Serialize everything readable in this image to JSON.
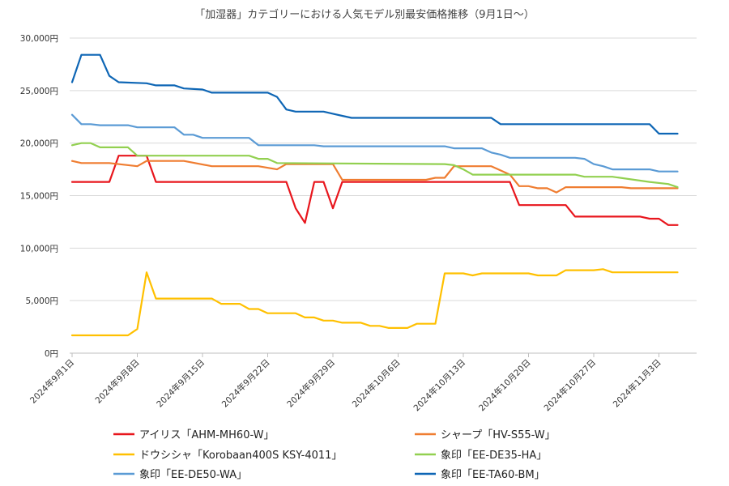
{
  "chart_data": {
    "type": "line",
    "title": "「加湿器」カテゴリーにおける人気モデル別最安価格推移（9月1日〜）",
    "xlabel": "",
    "ylabel": "",
    "ylim": [
      0,
      30000
    ],
    "yticks": [
      0,
      5000,
      10000,
      15000,
      20000,
      25000,
      30000
    ],
    "ytick_labels": [
      "0円",
      "5,000円",
      "10,000円",
      "15,000円",
      "20,000円",
      "25,000円",
      "30,000円"
    ],
    "x_start": "2024-09-01",
    "x_end": "2024-11-05",
    "xticks": [
      "2024-09-01",
      "2024-09-08",
      "2024-09-15",
      "2024-09-22",
      "2024-09-29",
      "2024-10-06",
      "2024-10-13",
      "2024-10-20",
      "2024-10-27",
      "2024-11-03"
    ],
    "xtick_labels": [
      "2024年9月1日",
      "2024年9月8日",
      "2024年9月15日",
      "2024年9月22日",
      "2024年9月29日",
      "2024年10月6日",
      "2024年10月13日",
      "2024年10月20日",
      "2024年10月27日",
      "2024年11月3日"
    ],
    "grid": true,
    "legend_position": "bottom",
    "series": [
      {
        "name": "アイリス「AHM-MH60-W」",
        "color": "#e8161d",
        "points": [
          [
            "2024-09-01",
            16300
          ],
          [
            "2024-09-05",
            16300
          ],
          [
            "2024-09-06",
            18800
          ],
          [
            "2024-09-09",
            18800
          ],
          [
            "2024-09-10",
            16300
          ],
          [
            "2024-09-24",
            16300
          ],
          [
            "2024-09-25",
            13800
          ],
          [
            "2024-09-26",
            12400
          ],
          [
            "2024-09-27",
            16300
          ],
          [
            "2024-09-28",
            16300
          ],
          [
            "2024-09-29",
            13800
          ],
          [
            "2024-09-30",
            16300
          ],
          [
            "2024-10-18",
            16300
          ],
          [
            "2024-10-19",
            14100
          ],
          [
            "2024-10-24",
            14100
          ],
          [
            "2024-10-25",
            13000
          ],
          [
            "2024-11-01",
            13000
          ],
          [
            "2024-11-02",
            12800
          ],
          [
            "2024-11-03",
            12800
          ],
          [
            "2024-11-04",
            12200
          ],
          [
            "2024-11-05",
            12200
          ]
        ]
      },
      {
        "name": "シャープ「HV-S55-W」",
        "color": "#ef7d31",
        "points": [
          [
            "2024-09-01",
            18300
          ],
          [
            "2024-09-02",
            18100
          ],
          [
            "2024-09-05",
            18100
          ],
          [
            "2024-09-08",
            17800
          ],
          [
            "2024-09-09",
            18300
          ],
          [
            "2024-09-13",
            18300
          ],
          [
            "2024-09-16",
            17800
          ],
          [
            "2024-09-21",
            17800
          ],
          [
            "2024-09-23",
            17500
          ],
          [
            "2024-09-24",
            18000
          ],
          [
            "2024-09-29",
            18000
          ],
          [
            "2024-09-30",
            16500
          ],
          [
            "2024-10-09",
            16500
          ],
          [
            "2024-10-10",
            16700
          ],
          [
            "2024-10-11",
            16700
          ],
          [
            "2024-10-12",
            17800
          ],
          [
            "2024-10-16",
            17800
          ],
          [
            "2024-10-17",
            17400
          ],
          [
            "2024-10-18",
            17000
          ],
          [
            "2024-10-19",
            15900
          ],
          [
            "2024-10-20",
            15900
          ],
          [
            "2024-10-21",
            15700
          ],
          [
            "2024-10-22",
            15700
          ],
          [
            "2024-10-23",
            15300
          ],
          [
            "2024-10-24",
            15800
          ],
          [
            "2024-10-30",
            15800
          ],
          [
            "2024-10-31",
            15700
          ],
          [
            "2024-11-05",
            15700
          ]
        ]
      },
      {
        "name": "ドウシシャ「Korobaan400S KSY-4011」",
        "color": "#ffc000",
        "points": [
          [
            "2024-09-01",
            1700
          ],
          [
            "2024-09-07",
            1700
          ],
          [
            "2024-09-08",
            2300
          ],
          [
            "2024-09-09",
            7700
          ],
          [
            "2024-09-10",
            5200
          ],
          [
            "2024-09-16",
            5200
          ],
          [
            "2024-09-17",
            4700
          ],
          [
            "2024-09-19",
            4700
          ],
          [
            "2024-09-20",
            4200
          ],
          [
            "2024-09-21",
            4200
          ],
          [
            "2024-09-22",
            3800
          ],
          [
            "2024-09-25",
            3800
          ],
          [
            "2024-09-26",
            3400
          ],
          [
            "2024-09-27",
            3400
          ],
          [
            "2024-09-28",
            3100
          ],
          [
            "2024-09-29",
            3100
          ],
          [
            "2024-09-30",
            2900
          ],
          [
            "2024-10-02",
            2900
          ],
          [
            "2024-10-03",
            2600
          ],
          [
            "2024-10-04",
            2600
          ],
          [
            "2024-10-05",
            2400
          ],
          [
            "2024-10-07",
            2400
          ],
          [
            "2024-10-08",
            2800
          ],
          [
            "2024-10-10",
            2800
          ],
          [
            "2024-10-11",
            7600
          ],
          [
            "2024-10-13",
            7600
          ],
          [
            "2024-10-14",
            7400
          ],
          [
            "2024-10-15",
            7600
          ],
          [
            "2024-10-20",
            7600
          ],
          [
            "2024-10-21",
            7400
          ],
          [
            "2024-10-23",
            7400
          ],
          [
            "2024-10-24",
            7900
          ],
          [
            "2024-10-27",
            7900
          ],
          [
            "2024-10-28",
            8000
          ],
          [
            "2024-10-29",
            7700
          ],
          [
            "2024-11-05",
            7700
          ]
        ]
      },
      {
        "name": "象印「EE-DE35-HA」",
        "color": "#92d050",
        "points": [
          [
            "2024-09-01",
            19800
          ],
          [
            "2024-09-02",
            20000
          ],
          [
            "2024-09-03",
            20000
          ],
          [
            "2024-09-04",
            19600
          ],
          [
            "2024-09-07",
            19600
          ],
          [
            "2024-09-08",
            18800
          ],
          [
            "2024-09-20",
            18800
          ],
          [
            "2024-09-21",
            18500
          ],
          [
            "2024-09-22",
            18500
          ],
          [
            "2024-09-23",
            18100
          ],
          [
            "2024-10-11",
            18000
          ],
          [
            "2024-10-12",
            17900
          ],
          [
            "2024-10-13",
            17500
          ],
          [
            "2024-10-14",
            17000
          ],
          [
            "2024-10-25",
            17000
          ],
          [
            "2024-10-26",
            16800
          ],
          [
            "2024-10-29",
            16800
          ],
          [
            "2024-11-02",
            16300
          ],
          [
            "2024-11-04",
            16100
          ],
          [
            "2024-11-05",
            15800
          ]
        ]
      },
      {
        "name": "象印「EE-DE50-WA」",
        "color": "#5b9bd5",
        "points": [
          [
            "2024-09-01",
            22700
          ],
          [
            "2024-09-02",
            21800
          ],
          [
            "2024-09-03",
            21800
          ],
          [
            "2024-09-04",
            21700
          ],
          [
            "2024-09-07",
            21700
          ],
          [
            "2024-09-08",
            21500
          ],
          [
            "2024-09-12",
            21500
          ],
          [
            "2024-09-13",
            20800
          ],
          [
            "2024-09-14",
            20800
          ],
          [
            "2024-09-15",
            20500
          ],
          [
            "2024-09-20",
            20500
          ],
          [
            "2024-09-21",
            19800
          ],
          [
            "2024-09-27",
            19800
          ],
          [
            "2024-09-28",
            19700
          ],
          [
            "2024-10-11",
            19700
          ],
          [
            "2024-10-12",
            19500
          ],
          [
            "2024-10-15",
            19500
          ],
          [
            "2024-10-16",
            19100
          ],
          [
            "2024-10-17",
            18900
          ],
          [
            "2024-10-18",
            18600
          ],
          [
            "2024-10-25",
            18600
          ],
          [
            "2024-10-26",
            18500
          ],
          [
            "2024-10-27",
            18000
          ],
          [
            "2024-10-28",
            17800
          ],
          [
            "2024-10-29",
            17500
          ],
          [
            "2024-11-02",
            17500
          ],
          [
            "2024-11-03",
            17300
          ],
          [
            "2024-11-05",
            17300
          ]
        ]
      },
      {
        "name": "象印「EE-TA60-BM」",
        "color": "#0e66b5",
        "points": [
          [
            "2024-09-01",
            25800
          ],
          [
            "2024-09-02",
            28400
          ],
          [
            "2024-09-04",
            28400
          ],
          [
            "2024-09-05",
            26400
          ],
          [
            "2024-09-06",
            25800
          ],
          [
            "2024-09-09",
            25700
          ],
          [
            "2024-09-10",
            25500
          ],
          [
            "2024-09-12",
            25500
          ],
          [
            "2024-09-13",
            25200
          ],
          [
            "2024-09-15",
            25100
          ],
          [
            "2024-09-16",
            24800
          ],
          [
            "2024-09-22",
            24800
          ],
          [
            "2024-09-23",
            24400
          ],
          [
            "2024-09-24",
            23200
          ],
          [
            "2024-09-25",
            23000
          ],
          [
            "2024-09-28",
            23000
          ],
          [
            "2024-09-29",
            22800
          ],
          [
            "2024-09-30",
            22600
          ],
          [
            "2024-10-01",
            22400
          ],
          [
            "2024-10-15",
            22400
          ],
          [
            "2024-10-16",
            22400
          ],
          [
            "2024-10-17",
            21800
          ],
          [
            "2024-11-02",
            21800
          ],
          [
            "2024-11-03",
            20900
          ],
          [
            "2024-11-05",
            20900
          ]
        ]
      }
    ]
  }
}
